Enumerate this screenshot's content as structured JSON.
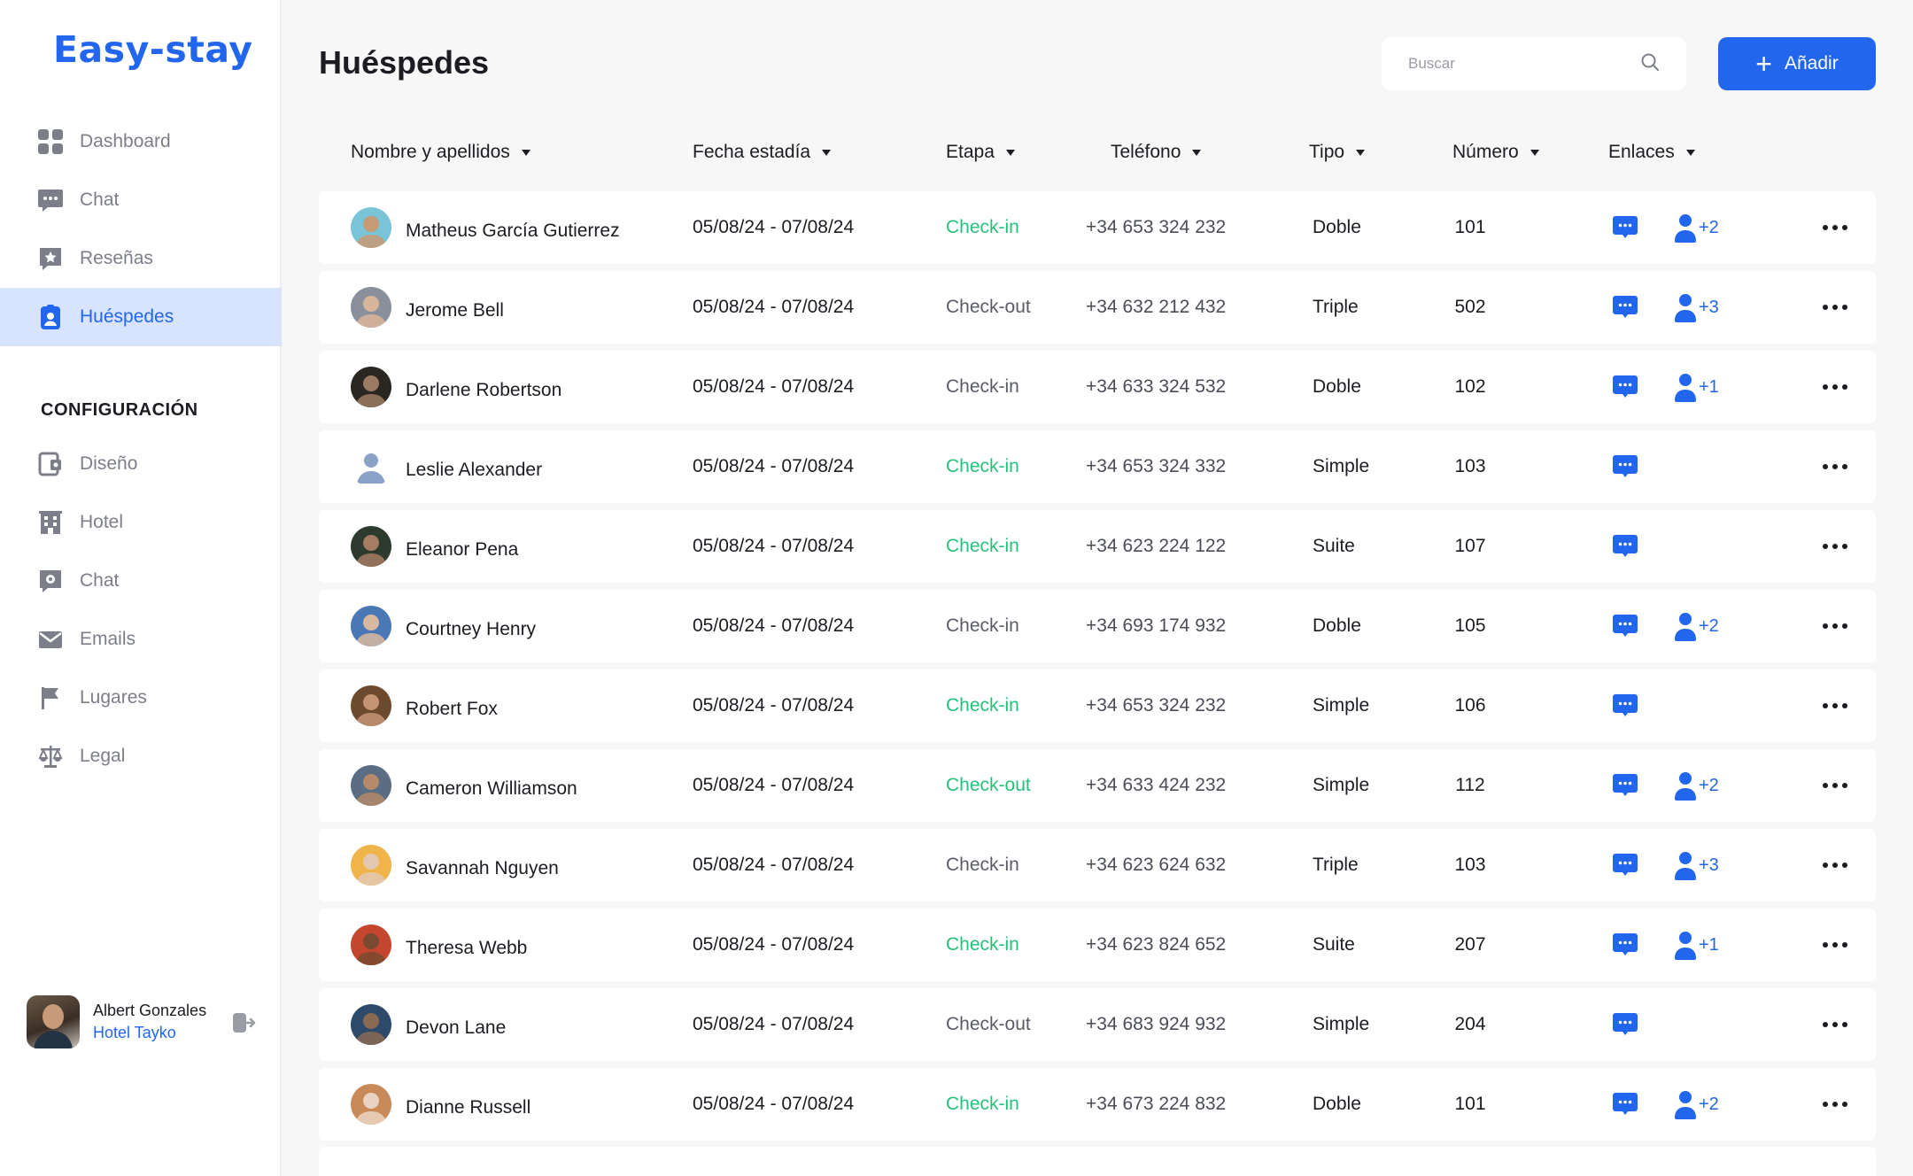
{
  "app": {
    "logo": "Easy-stay",
    "accent": "#2266ee",
    "success": "#27c07a"
  },
  "sidebar": {
    "nav": [
      {
        "label": "Dashboard",
        "icon": "dashboard-grid-icon"
      },
      {
        "label": "Chat",
        "icon": "chat-bubble-icon"
      },
      {
        "label": "Reseñas",
        "icon": "review-star-icon"
      },
      {
        "label": "Huéspedes",
        "icon": "guest-badge-icon",
        "active": true
      }
    ],
    "config_title": "CONFIGURACIÓN",
    "config": [
      {
        "label": "Diseño",
        "icon": "design-icon"
      },
      {
        "label": "Hotel",
        "icon": "hotel-building-icon"
      },
      {
        "label": "Chat",
        "icon": "chat-settings-icon"
      },
      {
        "label": "Emails",
        "icon": "mail-icon"
      },
      {
        "label": "Lugares",
        "icon": "flag-icon"
      },
      {
        "label": "Legal",
        "icon": "scale-icon"
      }
    ],
    "user": {
      "name": "Albert Gonzales",
      "hotel": "Hotel Tayko"
    }
  },
  "header": {
    "title": "Huéspedes",
    "search_placeholder": "Buscar",
    "add_label": "Añadir"
  },
  "table": {
    "columns": [
      "Nombre y apellidos",
      "Fecha estadía",
      "Etapa",
      "Teléfono",
      "Tipo",
      "Número",
      "Enlaces"
    ],
    "rows": [
      {
        "name": "Matheus García Gutierrez",
        "fecha": "05/08/24 - 07/08/24",
        "etapa": "Check-in",
        "green": true,
        "tel": "+34 653 324 232",
        "tipo": "Doble",
        "num": "101",
        "extra": "+2"
      },
      {
        "name": "Jerome Bell",
        "fecha": "05/08/24 - 07/08/24",
        "etapa": "Check-out",
        "green": false,
        "tel": "+34 632 212 432",
        "tipo": "Triple",
        "num": "502",
        "extra": "+3"
      },
      {
        "name": "Darlene Robertson",
        "fecha": "05/08/24 - 07/08/24",
        "etapa": "Check-in",
        "green": false,
        "tel": "+34 633 324 532",
        "tipo": "Doble",
        "num": "102",
        "extra": "+1"
      },
      {
        "name": "Leslie Alexander",
        "fecha": "05/08/24 - 07/08/24",
        "etapa": "Check-in",
        "green": true,
        "tel": "+34 653 324 332",
        "tipo": "Simple",
        "num": "103",
        "extra": null
      },
      {
        "name": "Eleanor Pena",
        "fecha": "05/08/24 - 07/08/24",
        "etapa": "Check-in",
        "green": true,
        "tel": "+34 623 224 122",
        "tipo": "Suite",
        "num": "107",
        "extra": null
      },
      {
        "name": "Courtney Henry",
        "fecha": "05/08/24 - 07/08/24",
        "etapa": "Check-in",
        "green": false,
        "tel": "+34 693 174 932",
        "tipo": "Doble",
        "num": "105",
        "extra": "+2"
      },
      {
        "name": "Robert Fox",
        "fecha": "05/08/24 - 07/08/24",
        "etapa": "Check-in",
        "green": true,
        "tel": "+34 653 324 232",
        "tipo": "Simple",
        "num": "106",
        "extra": null
      },
      {
        "name": "Cameron Williamson",
        "fecha": "05/08/24 - 07/08/24",
        "etapa": "Check-out",
        "green": true,
        "tel": "+34 633 424 232",
        "tipo": "Simple",
        "num": "112",
        "extra": "+2"
      },
      {
        "name": "Savannah Nguyen",
        "fecha": "05/08/24 - 07/08/24",
        "etapa": "Check-in",
        "green": false,
        "tel": "+34 623 624 632",
        "tipo": "Triple",
        "num": "103",
        "extra": "+3"
      },
      {
        "name": "Theresa Webb",
        "fecha": "05/08/24 - 07/08/24",
        "etapa": "Check-in",
        "green": true,
        "tel": "+34 623 824 652",
        "tipo": "Suite",
        "num": "207",
        "extra": "+1"
      },
      {
        "name": "Devon Lane",
        "fecha": "05/08/24 - 07/08/24",
        "etapa": "Check-out",
        "green": false,
        "tel": "+34 683 924 932",
        "tipo": "Simple",
        "num": "204",
        "extra": null
      },
      {
        "name": "Dianne Russell",
        "fecha": "05/08/24 - 07/08/24",
        "etapa": "Check-in",
        "green": true,
        "tel": "+34 673 224 832",
        "tipo": "Doble",
        "num": "101",
        "extra": "+2"
      }
    ]
  }
}
